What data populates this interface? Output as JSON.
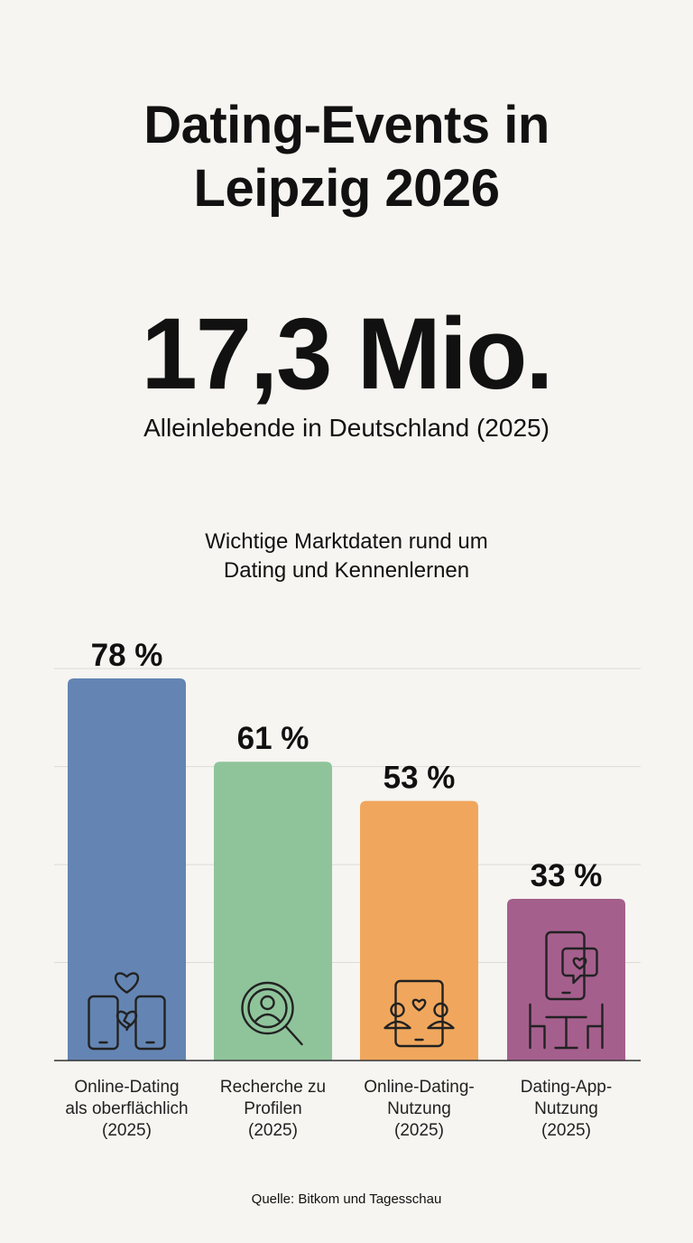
{
  "header": {
    "title_line1": "Dating-Events in",
    "title_line2": "Leipzig 2026"
  },
  "highlight": {
    "value": "17,3 Mio.",
    "caption": "Alleinlebende in Deutschland (2025)"
  },
  "chart_data": {
    "type": "bar",
    "title_line1": "Wichtige Marktdaten rund um",
    "title_line2": "Dating und Kennenlernen",
    "categories": [
      [
        "Online-Dating",
        "als oberflächlich",
        "(2025)"
      ],
      [
        "Recherche zu",
        "Profilen",
        "(2025)"
      ],
      [
        "Online-Dating-",
        "Nutzung",
        "(2025)"
      ],
      [
        "Dating-App-",
        "Nutzung",
        "(2025)"
      ]
    ],
    "values": [
      78,
      61,
      53,
      33
    ],
    "value_labels": [
      "78 %",
      "61 %",
      "53 %",
      "33 %"
    ],
    "unit": "%",
    "ylim": [
      0,
      80
    ],
    "grid": true,
    "colors": [
      "#6485b3",
      "#8fc49b",
      "#f0a75d",
      "#a55f8d"
    ],
    "icons": [
      "broken-heart-phones-icon",
      "profile-search-icon",
      "tablet-video-chat-icon",
      "phone-cafe-date-icon"
    ]
  },
  "footer": {
    "source": "Quelle: Bitkom und Tagesschau"
  }
}
